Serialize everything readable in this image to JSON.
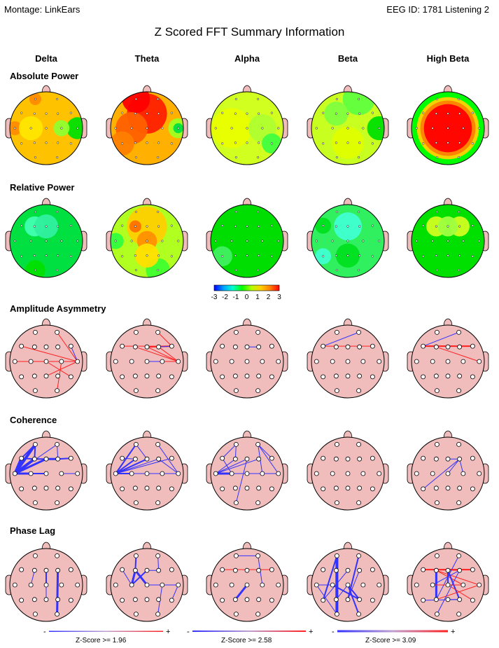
{
  "header": {
    "montage": "Montage:   LinkEars",
    "eeg_id": "EEG ID:   1781 Listening 2",
    "title": "Z Scored FFT Summary Information"
  },
  "columns": [
    "Delta",
    "Theta",
    "Alpha",
    "Beta",
    "High Beta"
  ],
  "sections": [
    "Absolute Power",
    "Relative Power",
    "Amplitude Asymmetry",
    "Coherence",
    "Phase Lag"
  ],
  "colorbar": {
    "ticks": [
      "-3",
      "-2",
      "-1",
      "0",
      "1",
      "2",
      "3"
    ],
    "colors": [
      "#0000ff",
      "#00a0ff",
      "#00ffd0",
      "#00ff00",
      "#b0ff00",
      "#ffd000",
      "#ff8000",
      "#ff0000"
    ]
  },
  "legend": [
    {
      "label": "Z-Score >= 1.96",
      "minus": "-",
      "plus": "+"
    },
    {
      "label": "Z-Score >= 2.58",
      "minus": "-",
      "plus": "+"
    },
    {
      "label": "Z-Score >= 3.09",
      "minus": "-",
      "plus": "+"
    }
  ],
  "colors": {
    "head_skin": "#f0bcbc",
    "negative_line": "#3333ff",
    "positive_line": "#ff2020"
  },
  "power_maps": {
    "absolute": [
      {
        "base": "#ffc200",
        "blobs": [
          {
            "c": "#ff8c00",
            "at": "T3",
            "r": 0.35
          },
          {
            "c": "#ffe600",
            "at": "C3",
            "r": 0.6
          },
          {
            "c": "#00e000",
            "at": "T4",
            "r": 0.55
          },
          {
            "c": "#90ff30",
            "at": "C4",
            "r": 0.4
          },
          {
            "c": "#ff8c00",
            "at": "Fp1",
            "r": 0.3
          }
        ]
      },
      {
        "base": "#ffb000",
        "blobs": [
          {
            "c": "#ff2000",
            "at": "Fz",
            "r": 1.0
          },
          {
            "c": "#ff0000",
            "at": "Fp1",
            "r": 0.7
          },
          {
            "c": "#ff6000",
            "at": "C3",
            "r": 0.8
          },
          {
            "c": "#ff8000",
            "at": "T5",
            "r": 0.6
          },
          {
            "c": "#a0ff20",
            "at": "T4",
            "r": 0.5
          },
          {
            "c": "#00e040",
            "at": "T4",
            "r": 0.25
          }
        ]
      },
      {
        "base": "#d0ff20",
        "blobs": [
          {
            "c": "#e8ff00",
            "at": "C3",
            "r": 1.0
          },
          {
            "c": "#b0ff30",
            "at": "C4",
            "r": 0.7
          },
          {
            "c": "#40ff40",
            "at": "T6",
            "r": 0.5
          }
        ]
      },
      {
        "base": "#c8ff20",
        "blobs": [
          {
            "c": "#60ff40",
            "at": "Fp2",
            "r": 0.8
          },
          {
            "c": "#80ff40",
            "at": "F3",
            "r": 0.6
          },
          {
            "c": "#00e000",
            "at": "T4",
            "r": 0.6
          },
          {
            "c": "#e0ff00",
            "at": "Pz",
            "r": 0.8
          }
        ]
      },
      {
        "base": "#00ff00",
        "blobs": [
          {
            "c": "#ffd000",
            "at": "Cz",
            "r": 1.55
          },
          {
            "c": "#ff8000",
            "at": "Cz",
            "r": 1.38
          },
          {
            "c": "#ff0000",
            "at": "Cz",
            "r": 1.2
          }
        ]
      }
    ],
    "relative": [
      {
        "base": "#00e040",
        "blobs": [
          {
            "c": "#40ffb0",
            "at": "F3",
            "r": 0.5
          },
          {
            "c": "#30f0a0",
            "at": "Fz",
            "r": 0.6
          },
          {
            "c": "#00e000",
            "at": "O1",
            "r": 0.5
          }
        ]
      },
      {
        "base": "#b0ff20",
        "blobs": [
          {
            "c": "#ffd000",
            "at": "Fz",
            "r": 1.0
          },
          {
            "c": "#ff9000",
            "at": "Cz",
            "r": 0.5
          },
          {
            "c": "#ff7000",
            "at": "F3",
            "r": 0.3
          },
          {
            "c": "#30ff40",
            "at": "T3",
            "r": 0.4
          },
          {
            "c": "#40ff30",
            "at": "O2",
            "r": 0.6
          },
          {
            "c": "#ffe000",
            "at": "Pz",
            "r": 0.6
          }
        ]
      },
      {
        "base": "#00dd00",
        "blobs": [
          {
            "c": "#40f060",
            "at": "T5",
            "r": 0.5
          }
        ]
      },
      {
        "base": "#30f060",
        "blobs": [
          {
            "c": "#40ffd0",
            "at": "Fz",
            "r": 0.7
          },
          {
            "c": "#40ffd0",
            "at": "T5",
            "r": 0.4
          },
          {
            "c": "#00e020",
            "at": "F7",
            "r": 0.4
          },
          {
            "c": "#00e020",
            "at": "Pz",
            "r": 0.6
          }
        ]
      },
      {
        "base": "#00e000",
        "blobs": [
          {
            "c": "#d0ff20",
            "at": "F3",
            "r": 0.5
          },
          {
            "c": "#d0ff20",
            "at": "F4",
            "r": 0.5
          },
          {
            "c": "#a0ff40",
            "at": "Fz",
            "r": 0.5
          }
        ]
      }
    ]
  },
  "connections": {
    "asymmetry": [
      [
        [
          "Fp2",
          "T4",
          "p",
          1
        ],
        [
          "F7",
          "T4",
          "p",
          1
        ],
        [
          "T3",
          "T4",
          "p",
          1
        ],
        [
          "C3",
          "T4",
          "p",
          1
        ],
        [
          "F8",
          "T4",
          "n",
          1
        ],
        [
          "Cz",
          "T6",
          "p",
          1
        ],
        [
          "C4",
          "O2",
          "p",
          1
        ],
        [
          "Pz",
          "T4",
          "p",
          1
        ]
      ],
      [
        [
          "F7",
          "F8",
          "p",
          1
        ],
        [
          "Fz",
          "F8",
          "p",
          2
        ],
        [
          "F4",
          "F8",
          "n",
          1
        ],
        [
          "Fp2",
          "F8",
          "p",
          1
        ],
        [
          "F3",
          "T4",
          "p",
          1
        ],
        [
          "Fz",
          "T4",
          "p",
          1
        ],
        [
          "Cz",
          "T4",
          "n",
          1
        ],
        [
          "C4",
          "T4",
          "p",
          1
        ],
        [
          "F4",
          "T4",
          "p",
          1
        ]
      ],
      [
        [
          "Fz",
          "F4",
          "n",
          1
        ]
      ],
      [
        [
          "F7",
          "F8",
          "p",
          1
        ],
        [
          "F7",
          "Fp2",
          "n",
          1
        ]
      ],
      [
        [
          "F7",
          "F8",
          "p",
          2
        ],
        [
          "F7",
          "Fp2",
          "n",
          1
        ],
        [
          "F3",
          "T4",
          "p",
          1
        ]
      ]
    ],
    "coherence": [
      [
        [
          "T3",
          "Fp1",
          "n",
          4
        ],
        [
          "T3",
          "F7",
          "n",
          4
        ],
        [
          "T3",
          "F3",
          "n",
          4
        ],
        [
          "T3",
          "Fz",
          "n",
          3
        ],
        [
          "T3",
          "C3",
          "n",
          3
        ],
        [
          "T3",
          "Cz",
          "n",
          2
        ],
        [
          "F7",
          "Fp1",
          "n",
          2
        ],
        [
          "Fp1",
          "F3",
          "n",
          2
        ],
        [
          "F7",
          "F3",
          "n",
          2
        ],
        [
          "F3",
          "Fz",
          "n",
          2
        ],
        [
          "Fz",
          "F4",
          "n",
          3
        ],
        [
          "F4",
          "F8",
          "n",
          2
        ],
        [
          "T3",
          "Fp2",
          "n",
          1
        ],
        [
          "C4",
          "T4",
          "n",
          1
        ],
        [
          "Fp2",
          "F4",
          "n",
          1
        ]
      ],
      [
        [
          "T3",
          "Fp1",
          "n",
          2
        ],
        [
          "T3",
          "F3",
          "n",
          2
        ],
        [
          "T3",
          "C3",
          "n",
          2
        ],
        [
          "T3",
          "Cz",
          "n",
          1
        ],
        [
          "T3",
          "Fz",
          "n",
          2
        ],
        [
          "T3",
          "F4",
          "n",
          1
        ],
        [
          "T3",
          "F8",
          "n",
          1
        ],
        [
          "T3",
          "T4",
          "n",
          1
        ],
        [
          "Fp1",
          "Fz",
          "n",
          1
        ],
        [
          "F7",
          "F3",
          "n",
          1
        ],
        [
          "Fp2",
          "T4",
          "n",
          1
        ],
        [
          "F4",
          "T4",
          "n",
          1
        ],
        [
          "C3",
          "T4",
          "n",
          1
        ]
      ],
      [
        [
          "T3",
          "C3",
          "n",
          3
        ],
        [
          "T3",
          "F3",
          "n",
          1
        ],
        [
          "T3",
          "Fz",
          "n",
          1
        ],
        [
          "T3",
          "F4",
          "n",
          1
        ],
        [
          "T3",
          "T4",
          "n",
          1
        ],
        [
          "F7",
          "Fp1",
          "n",
          1
        ],
        [
          "F7",
          "C3",
          "n",
          1
        ],
        [
          "Fp1",
          "F3",
          "n",
          1
        ],
        [
          "Fp2",
          "T4",
          "n",
          1
        ],
        [
          "Fp2",
          "C4",
          "n",
          1
        ],
        [
          "Fz",
          "O1",
          "n",
          1
        ],
        [
          "Fp2",
          "F8",
          "n",
          1
        ],
        [
          "T3",
          "Cz",
          "n",
          1
        ]
      ],
      [],
      [
        [
          "Fz",
          "F4",
          "n",
          1
        ],
        [
          "F4",
          "C4",
          "n",
          1
        ],
        [
          "F4",
          "Cz",
          "n",
          1
        ],
        [
          "F4",
          "T5",
          "n",
          1
        ]
      ]
    ],
    "phaselag": [
      [
        [
          "F3",
          "C3",
          "n",
          1
        ],
        [
          "Fz",
          "Cz",
          "n",
          2
        ],
        [
          "F4",
          "O2",
          "n",
          3
        ],
        [
          "Cz",
          "Pz",
          "n",
          1
        ]
      ],
      [
        [
          "Fp1",
          "F3",
          "n",
          2
        ],
        [
          "F3",
          "C3",
          "n",
          3
        ],
        [
          "F3",
          "Cz",
          "n",
          3
        ],
        [
          "Fz",
          "C3",
          "n",
          2
        ],
        [
          "Fp2",
          "F4",
          "n",
          1
        ],
        [
          "Fz",
          "F4",
          "n",
          1
        ],
        [
          "Cz",
          "T4",
          "n",
          1
        ],
        [
          "T4",
          "T6",
          "n",
          1
        ],
        [
          "C4",
          "O2",
          "n",
          1
        ],
        [
          "F7",
          "C3",
          "n",
          1
        ]
      ],
      [
        [
          "F7",
          "F8",
          "p",
          1
        ],
        [
          "Fp1",
          "Fp2",
          "n",
          1
        ],
        [
          "Fp2",
          "C4",
          "n",
          1
        ],
        [
          "Cz",
          "P3",
          "n",
          3
        ]
      ],
      [
        [
          "Fp1",
          "O1",
          "n",
          4
        ],
        [
          "Fp1",
          "T5",
          "n",
          2
        ],
        [
          "Fp2",
          "Pz",
          "n",
          2
        ],
        [
          "F3",
          "P3",
          "n",
          2
        ],
        [
          "Cz",
          "O2",
          "n",
          2
        ],
        [
          "C3",
          "P4",
          "n",
          2
        ],
        [
          "Cz",
          "P4",
          "n",
          2
        ],
        [
          "Pz",
          "F4",
          "n",
          1
        ],
        [
          "Fz",
          "T5",
          "n",
          1
        ],
        [
          "C3",
          "T3",
          "n",
          1
        ],
        [
          "P3",
          "Cz",
          "n",
          1
        ],
        [
          "T3",
          "O1",
          "n",
          1
        ]
      ],
      [
        [
          "F7",
          "F8",
          "p",
          2
        ],
        [
          "F7",
          "F4",
          "p",
          1
        ],
        [
          "F3",
          "T4",
          "p",
          1
        ],
        [
          "F3",
          "C4",
          "p",
          1
        ],
        [
          "F3",
          "P3",
          "n",
          3
        ],
        [
          "Fz",
          "Cz",
          "n",
          2
        ],
        [
          "Fz",
          "P4",
          "n",
          2
        ],
        [
          "F4",
          "C3",
          "n",
          1
        ],
        [
          "Fp2",
          "P3",
          "n",
          1
        ],
        [
          "C3",
          "C4",
          "p",
          1
        ],
        [
          "Cz",
          "T6",
          "p",
          1
        ],
        [
          "P3",
          "T4",
          "p",
          1
        ],
        [
          "Pz",
          "P4",
          "n",
          1
        ],
        [
          "O1",
          "F4",
          "n",
          1
        ],
        [
          "T5",
          "P4",
          "n",
          1
        ]
      ]
    ]
  }
}
